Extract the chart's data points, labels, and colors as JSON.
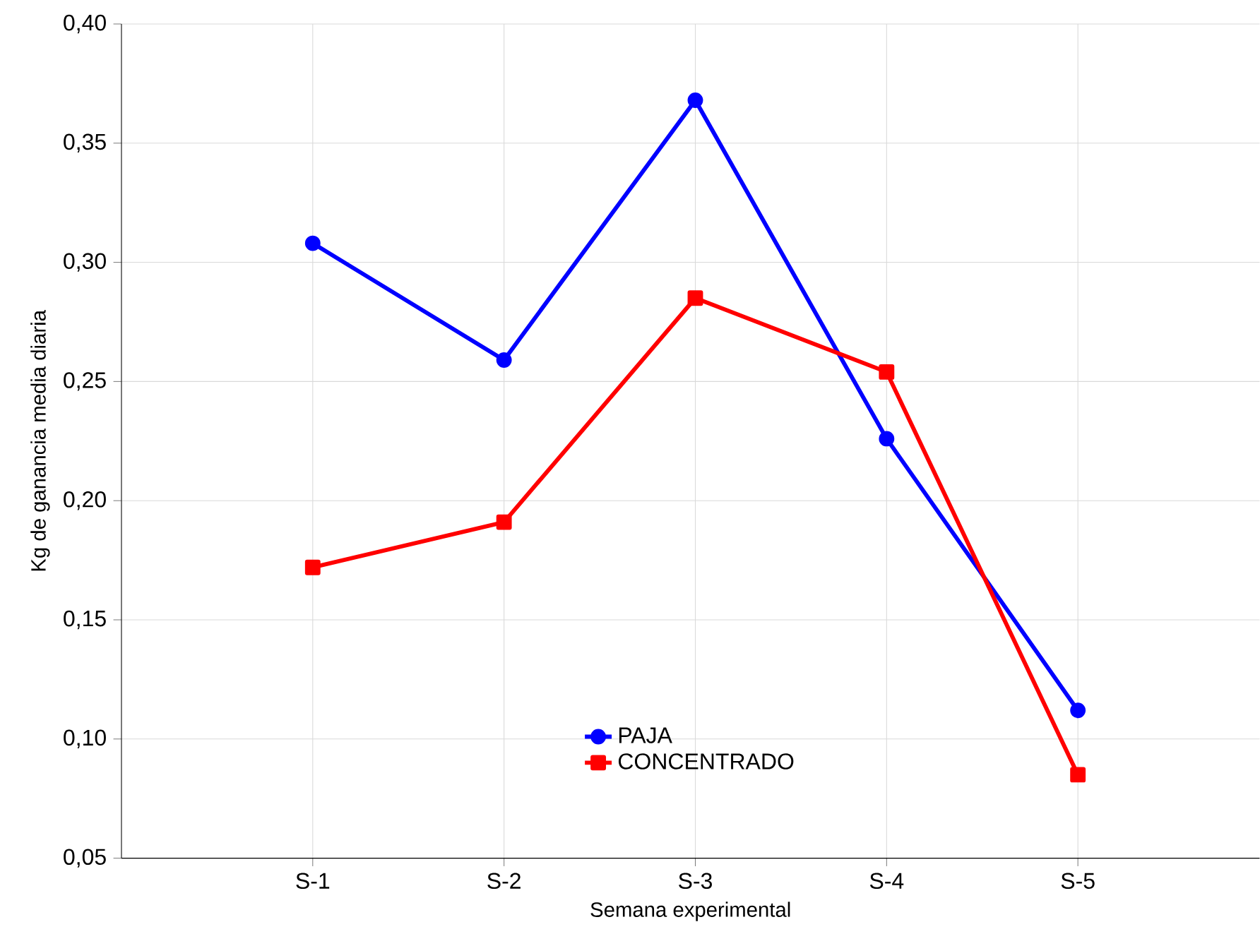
{
  "chart_data": {
    "type": "line",
    "xlabel": "Semana experimental",
    "ylabel": "Kg de ganancia media diaria",
    "categories": [
      "S-1",
      "S-2",
      "S-3",
      "S-4",
      "S-5"
    ],
    "series": [
      {
        "name": "PAJA",
        "color": "#0000ff",
        "marker": "circle",
        "values": [
          0.308,
          0.259,
          0.368,
          0.226,
          0.112
        ]
      },
      {
        "name": "CONCENTRADO",
        "color": "#ff0000",
        "marker": "square",
        "values": [
          0.172,
          0.191,
          0.285,
          0.254,
          0.085
        ]
      }
    ],
    "ylim": [
      0.05,
      0.4
    ],
    "yticks": [
      {
        "value": 0.05,
        "label": "0,05"
      },
      {
        "value": 0.1,
        "label": "0,10"
      },
      {
        "value": 0.15,
        "label": "0,15"
      },
      {
        "value": 0.2,
        "label": "0,20"
      },
      {
        "value": 0.25,
        "label": "0,25"
      },
      {
        "value": 0.3,
        "label": "0,30"
      },
      {
        "value": 0.35,
        "label": "0,35"
      },
      {
        "value": 0.4,
        "label": "0,40"
      }
    ],
    "grid": true,
    "legend": "bottom",
    "line_style": "solid"
  }
}
